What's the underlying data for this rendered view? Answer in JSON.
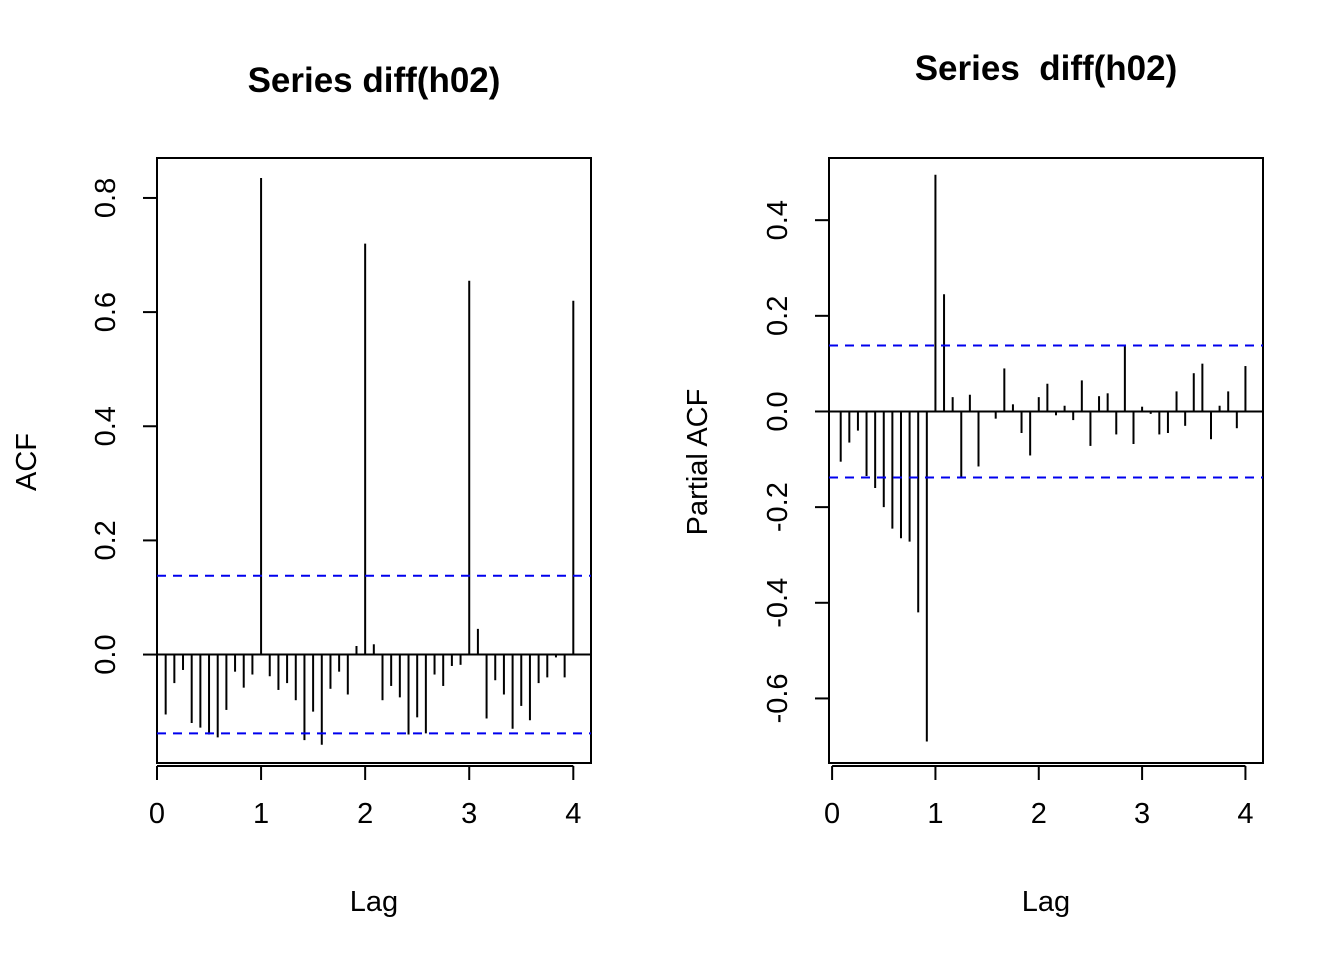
{
  "chart_data": [
    {
      "type": "bar",
      "subtype": "acf",
      "title": "Series diff(h02)",
      "xlabel": "Lag",
      "ylabel": "ACF",
      "xlim": [
        0,
        4.17
      ],
      "ylim": [
        -0.19,
        0.87
      ],
      "x_ticks": [
        "0",
        "1",
        "2",
        "3",
        "4"
      ],
      "y_ticks": [
        "0.0",
        "0.2",
        "0.4",
        "0.6",
        "0.8"
      ],
      "ci_bounds": [
        0.138,
        -0.138
      ],
      "ci_color": "#0000ee",
      "bar_color": "#000000",
      "grid": false,
      "legend": "none",
      "lag_step": 0.0833,
      "lags": [
        0.0833,
        0.1667,
        0.25,
        0.3333,
        0.4167,
        0.5,
        0.5833,
        0.6667,
        0.75,
        0.8333,
        0.9167,
        1.0,
        1.0833,
        1.1667,
        1.25,
        1.3333,
        1.4167,
        1.5,
        1.5833,
        1.6667,
        1.75,
        1.8333,
        1.9167,
        2.0,
        2.0833,
        2.1667,
        2.25,
        2.3333,
        2.4167,
        2.5,
        2.5833,
        2.6667,
        2.75,
        2.8333,
        2.9167,
        3.0,
        3.0833,
        3.1667,
        3.25,
        3.3333,
        3.4167,
        3.5,
        3.5833,
        3.6667,
        3.75,
        3.8333,
        3.9167,
        4.0
      ],
      "values": [
        -0.105,
        -0.05,
        -0.027,
        -0.12,
        -0.128,
        -0.14,
        -0.145,
        -0.097,
        -0.03,
        -0.058,
        -0.035,
        0.835,
        -0.038,
        -0.062,
        -0.05,
        -0.08,
        -0.15,
        -0.1,
        -0.158,
        -0.06,
        -0.03,
        -0.07,
        0.015,
        0.72,
        0.018,
        -0.08,
        -0.055,
        -0.075,
        -0.14,
        -0.11,
        -0.138,
        -0.035,
        -0.055,
        -0.02,
        -0.018,
        0.655,
        0.045,
        -0.112,
        -0.045,
        -0.07,
        -0.13,
        -0.09,
        -0.115,
        -0.05,
        -0.04,
        -0.005,
        -0.04,
        0.62
      ]
    },
    {
      "type": "bar",
      "subtype": "pacf",
      "title": "Series  diff(h02)",
      "xlabel": "Lag",
      "ylabel": "Partial ACF",
      "xlim": [
        -0.03,
        4.17
      ],
      "ylim": [
        -0.735,
        0.53
      ],
      "x_ticks": [
        "0",
        "1",
        "2",
        "3",
        "4"
      ],
      "y_ticks": [
        "-0.6",
        "-0.4",
        "-0.2",
        "0.0",
        "0.2",
        "0.4"
      ],
      "ci_bounds": [
        0.138,
        -0.138
      ],
      "ci_color": "#0000ee",
      "bar_color": "#000000",
      "grid": false,
      "legend": "none",
      "lag_step": 0.0833,
      "lags": [
        0.0833,
        0.1667,
        0.25,
        0.3333,
        0.4167,
        0.5,
        0.5833,
        0.6667,
        0.75,
        0.8333,
        0.9167,
        1.0,
        1.0833,
        1.1667,
        1.25,
        1.3333,
        1.4167,
        1.5,
        1.5833,
        1.6667,
        1.75,
        1.8333,
        1.9167,
        2.0,
        2.0833,
        2.1667,
        2.25,
        2.3333,
        2.4167,
        2.5,
        2.5833,
        2.6667,
        2.75,
        2.8333,
        2.9167,
        3.0,
        3.0833,
        3.1667,
        3.25,
        3.3333,
        3.4167,
        3.5,
        3.5833,
        3.6667,
        3.75,
        3.8333,
        3.9167,
        4.0
      ],
      "values": [
        -0.105,
        -0.065,
        -0.04,
        -0.135,
        -0.16,
        -0.2,
        -0.245,
        -0.265,
        -0.272,
        -0.42,
        -0.69,
        0.495,
        0.245,
        0.03,
        -0.14,
        0.035,
        -0.115,
        0.0,
        -0.015,
        0.09,
        0.015,
        -0.045,
        -0.092,
        0.03,
        0.058,
        -0.008,
        0.012,
        -0.018,
        0.065,
        -0.072,
        0.032,
        0.038,
        -0.048,
        0.138,
        -0.068,
        0.01,
        -0.005,
        -0.048,
        -0.045,
        0.042,
        -0.03,
        0.08,
        0.1,
        -0.058,
        0.012,
        0.042,
        -0.035,
        0.095
      ]
    }
  ]
}
